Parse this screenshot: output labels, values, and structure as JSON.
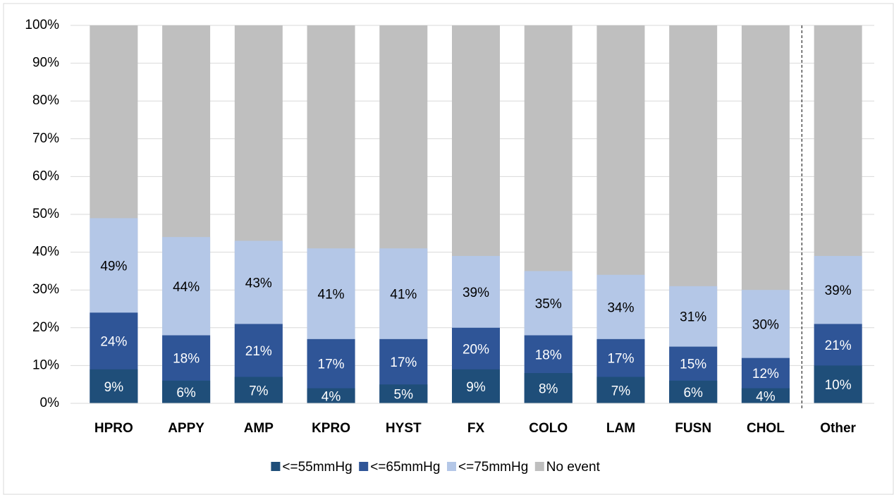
{
  "chart_data": {
    "type": "bar",
    "overlap": true,
    "categories": [
      "HPRO",
      "APPY",
      "AMP",
      "KPRO",
      "HYST",
      "FX",
      "COLO",
      "LAM",
      "FUSN",
      "CHOL",
      "Other"
    ],
    "series": [
      {
        "name": "<=55mmHg",
        "color": "#1f4e79",
        "values": [
          9,
          6,
          7,
          4,
          5,
          9,
          8,
          7,
          6,
          4,
          10
        ],
        "value_labels": [
          "9%",
          "6%",
          "7%",
          "4%",
          "5%",
          "9%",
          "8%",
          "7%",
          "6%",
          "4%",
          "10%"
        ]
      },
      {
        "name": "<=65mmHg",
        "color": "#2f5597",
        "values": [
          24,
          18,
          21,
          17,
          17,
          20,
          18,
          17,
          15,
          12,
          21
        ],
        "value_labels": [
          "24%",
          "18%",
          "21%",
          "17%",
          "17%",
          "20%",
          "18%",
          "17%",
          "15%",
          "12%",
          "21%"
        ]
      },
      {
        "name": "<=75mmHg",
        "color": "#b4c7e7",
        "values": [
          49,
          44,
          43,
          41,
          41,
          39,
          35,
          34,
          31,
          30,
          39
        ],
        "value_labels": [
          "49%",
          "44%",
          "43%",
          "41%",
          "41%",
          "39%",
          "35%",
          "34%",
          "31%",
          "30%",
          "39%"
        ]
      },
      {
        "name": "No event",
        "color": "#bfbfbf",
        "values": [
          100,
          100,
          100,
          100,
          100,
          100,
          100,
          100,
          100,
          100,
          100
        ]
      }
    ],
    "ylim": [
      0,
      100
    ],
    "yticks": [
      {
        "value": 0,
        "label": "0%"
      },
      {
        "value": 10,
        "label": "10%"
      },
      {
        "value": 20,
        "label": "20%"
      },
      {
        "value": 30,
        "label": "30%"
      },
      {
        "value": 40,
        "label": "40%"
      },
      {
        "value": 50,
        "label": "50%"
      },
      {
        "value": 60,
        "label": "60%"
      },
      {
        "value": 70,
        "label": "70%"
      },
      {
        "value": 80,
        "label": "80%"
      },
      {
        "value": 90,
        "label": "90%"
      },
      {
        "value": 100,
        "label": "100%"
      }
    ],
    "grid": true,
    "legend": "bottom"
  }
}
